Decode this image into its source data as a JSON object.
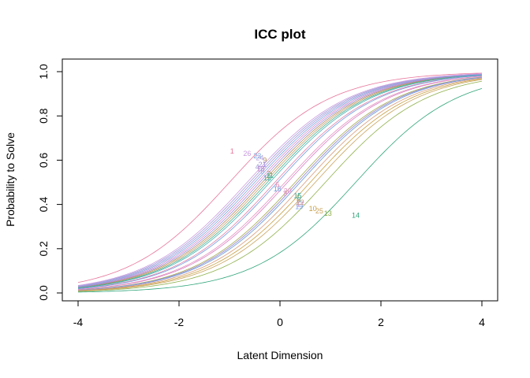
{
  "chart_data": {
    "type": "line",
    "title": "ICC plot",
    "xlabel": "Latent Dimension",
    "ylabel": "Probability to Solve",
    "xlim": [
      -4,
      4
    ],
    "ylim": [
      0,
      1
    ],
    "x_ticks": [
      -4,
      -2,
      0,
      2,
      4
    ],
    "y_ticks": [
      0.0,
      0.2,
      0.4,
      0.6,
      0.8,
      1.0
    ],
    "x_tick_labels": [
      "-4",
      "-2",
      "0",
      "2",
      "4"
    ],
    "y_tick_labels": [
      "0.0",
      "0.2",
      "0.4",
      "0.6",
      "0.8",
      "1.0"
    ],
    "grid": false,
    "legend": "none",
    "model": "logistic",
    "series": [
      {
        "name": "1",
        "difficulty": -1.0,
        "label_y": 0.64,
        "color": "#E8749A"
      },
      {
        "name": "2",
        "difficulty": -0.3,
        "label_y": 0.54,
        "color": "#C49A6C"
      },
      {
        "name": "3",
        "difficulty": 0.15,
        "label_y": 0.45,
        "color": "#D67FC2"
      },
      {
        "name": "4",
        "difficulty": -0.6,
        "label_y": 0.57,
        "color": "#9A9AD6"
      },
      {
        "name": "5",
        "difficulty": -0.55,
        "label_y": 0.55,
        "color": "#8AA2E0"
      },
      {
        "name": "6",
        "difficulty": -0.1,
        "label_y": 0.49,
        "color": "#E07FA8"
      },
      {
        "name": "7",
        "difficulty": 0.3,
        "label_y": 0.43,
        "color": "#A3A84A"
      },
      {
        "name": "8",
        "difficulty": 0.4,
        "label_y": 0.42,
        "color": "#5CA8A0"
      },
      {
        "name": "9",
        "difficulty": -0.35,
        "label_y": 0.6,
        "color": "#B28C5A"
      },
      {
        "name": "10",
        "difficulty": 0.6,
        "label_y": 0.38,
        "color": "#C8A040"
      },
      {
        "name": "11",
        "difficulty": -0.25,
        "label_y": 0.53,
        "color": "#3FAF8A"
      },
      {
        "name": "12",
        "difficulty": -0.2,
        "label_y": 0.52,
        "color": "#49AFB5"
      },
      {
        "name": "13",
        "difficulty": 0.9,
        "label_y": 0.36,
        "color": "#8FB04A"
      },
      {
        "name": "14",
        "difficulty": 1.5,
        "label_y": 0.35,
        "color": "#2FA57A"
      },
      {
        "name": "15",
        "difficulty": 0.35,
        "label_y": 0.44,
        "color": "#35A89A"
      },
      {
        "name": "16",
        "difficulty": -0.05,
        "label_y": 0.47,
        "color": "#6C9BE0"
      },
      {
        "name": "17",
        "difficulty": 0.35,
        "label_y": 0.4,
        "color": "#B48CDC"
      },
      {
        "name": "18",
        "difficulty": -0.45,
        "label_y": 0.56,
        "color": "#D58AC9"
      },
      {
        "name": "19",
        "difficulty": 0.4,
        "label_y": 0.39,
        "color": "#7FA3E8"
      },
      {
        "name": "20",
        "difficulty": 0.1,
        "label_y": 0.46,
        "color": "#E58FBF"
      },
      {
        "name": "21",
        "difficulty": -0.4,
        "label_y": 0.58,
        "color": "#9E8BE0"
      },
      {
        "name": "22",
        "difficulty": 0.5,
        "label_y": 0.41,
        "color": "#D99A7A"
      },
      {
        "name": "23",
        "difficulty": -0.5,
        "label_y": 0.62,
        "color": "#76A6DD"
      },
      {
        "name": "24",
        "difficulty": -0.55,
        "label_y": 0.61,
        "color": "#B7A2DD"
      },
      {
        "name": "25",
        "difficulty": 0.7,
        "label_y": 0.37,
        "color": "#C9A35D"
      },
      {
        "name": "26",
        "difficulty": -0.65,
        "label_y": 0.63,
        "color": "#C99AE0"
      }
    ],
    "label_positions_x": {
      "1": -0.95,
      "26": -0.65,
      "23": -0.45,
      "24": -0.4,
      "21": -0.35,
      "9": -0.3,
      "4": -0.45,
      "18": -0.38,
      "5": -0.35,
      "2": -0.22,
      "11": -0.2,
      "12": -0.25,
      "6": -0.05,
      "16": -0.05,
      "3": 0.1,
      "20": 0.15,
      "15": 0.35,
      "8": 0.38,
      "22": 0.4,
      "7": 0.35,
      "17": 0.4,
      "19": 0.38,
      "10": 0.65,
      "25": 0.78,
      "13": 0.95,
      "14": 1.5
    }
  }
}
